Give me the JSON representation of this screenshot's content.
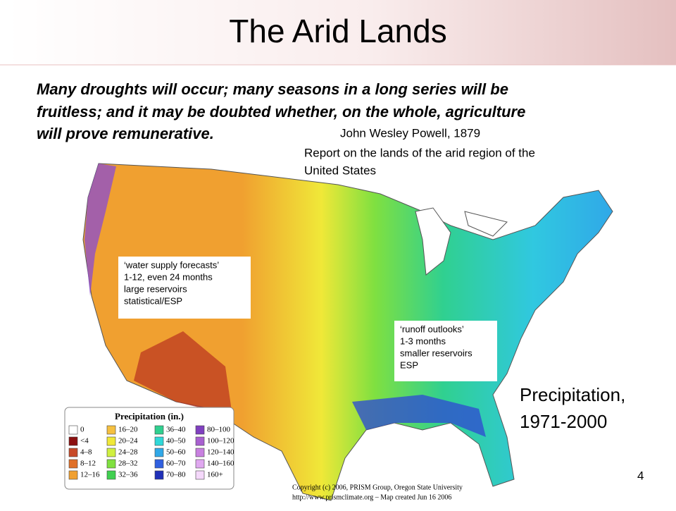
{
  "title": "The Arid Lands",
  "quote": {
    "lines": [
      "Many droughts will occur; many seasons in a long series will be",
      "fruitless; and it may be doubted whether, on the whole, agriculture",
      "will prove remunerative."
    ]
  },
  "attribution": "John Wesley Powell, 1879",
  "report": {
    "lines": [
      "Report on the lands of the arid region of the",
      "United States"
    ]
  },
  "callouts": [
    {
      "lines": [
        "‘water supply forecasts’",
        "1-12, even 24 months",
        "large reservoirs",
        "statistical/ESP"
      ]
    },
    {
      "lines": [
        "‘runoff outlooks’",
        "1-3 months",
        "smaller reservoirs",
        "ESP"
      ]
    }
  ],
  "caption": {
    "lines": [
      "Precipitation,",
      "1971-2000"
    ]
  },
  "legend": {
    "title": "Precipitation (in.)",
    "columns": [
      [
        {
          "label": "0",
          "color": "#ffffff"
        },
        {
          "label": "<4",
          "color": "#8b1010"
        },
        {
          "label": "4–8",
          "color": "#c84a28"
        },
        {
          "label": "8–12",
          "color": "#e07028"
        },
        {
          "label": "12–16",
          "color": "#f0a030"
        }
      ],
      [
        {
          "label": "16–20",
          "color": "#f5c040"
        },
        {
          "label": "20–24",
          "color": "#f0e838"
        },
        {
          "label": "24–28",
          "color": "#d0f040"
        },
        {
          "label": "28–32",
          "color": "#80e040"
        },
        {
          "label": "32–36",
          "color": "#40d050"
        }
      ],
      [
        {
          "label": "36–40",
          "color": "#30d090"
        },
        {
          "label": "40–50",
          "color": "#30d8d8"
        },
        {
          "label": "50–60",
          "color": "#30a8e8"
        },
        {
          "label": "60–70",
          "color": "#3060e0"
        },
        {
          "label": "70–80",
          "color": "#2030b8"
        }
      ],
      [
        {
          "label": "80–100",
          "color": "#8040c0"
        },
        {
          "label": "100–120",
          "color": "#a860d0"
        },
        {
          "label": "120–140",
          "color": "#c880e0"
        },
        {
          "label": "140–160",
          "color": "#e0a8f0"
        },
        {
          "label": "160+",
          "color": "#f4d8fa"
        }
      ]
    ]
  },
  "copyright": {
    "lines": [
      "Copyright (c) 2006, PRISM Group, Oregon State University",
      "http://www.prismclimate.org  –  Map created Jun 16 2006"
    ]
  },
  "page_number": "4"
}
